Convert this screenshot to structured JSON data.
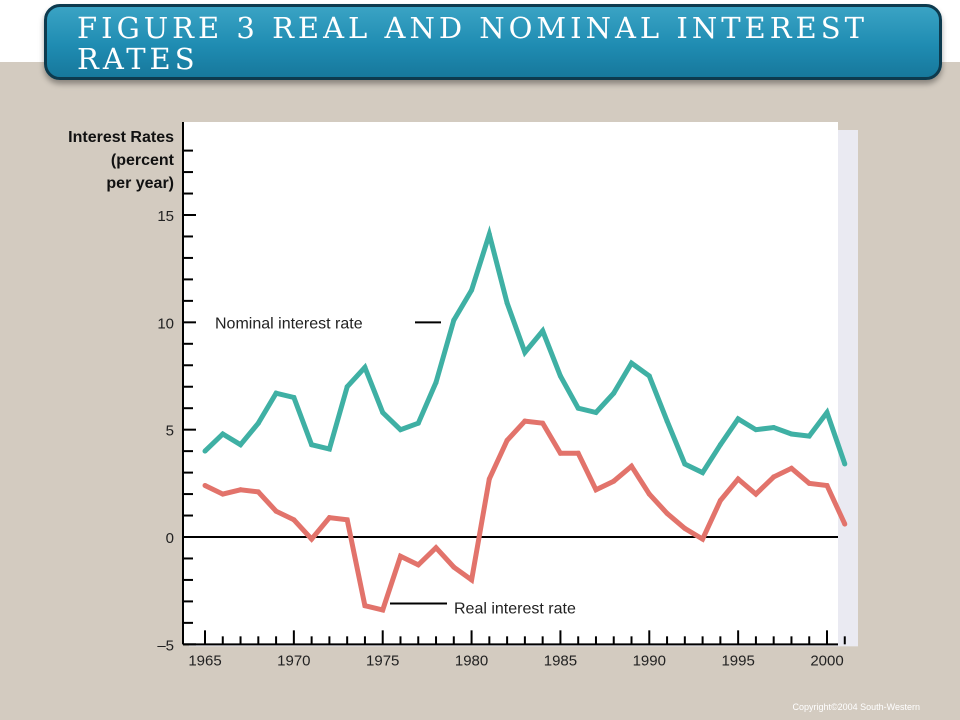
{
  "header": {
    "title": "FIGURE 3 REAL AND NOMINAL INTEREST RATES"
  },
  "footer": {
    "copyright": "Copyright©2004 South-Western"
  },
  "colors": {
    "nominal": "#3fb0a4",
    "real": "#e2736b",
    "title_banner": "#2190b6",
    "background": "#d3cbc0"
  },
  "chart_data": {
    "type": "line",
    "ylabel_lines": [
      "Interest Rates",
      "(percent",
      "per year)"
    ],
    "ylim": [
      -5,
      15
    ],
    "xlim": [
      1964,
      2001
    ],
    "y_ticks": [
      15,
      10,
      5,
      0,
      -5
    ],
    "y_tick_labels": [
      "15",
      "10",
      "5",
      "0",
      "–5"
    ],
    "x_ticks": [
      1965,
      1970,
      1975,
      1980,
      1985,
      1990,
      1995,
      2000
    ],
    "x_tick_labels": [
      "1965",
      "1970",
      "1975",
      "1980",
      "1985",
      "1990",
      "1995",
      "2000"
    ],
    "grid": false,
    "series": [
      {
        "name": "Nominal interest rate",
        "color": "#3fb0a4",
        "points": [
          [
            1965,
            4.0
          ],
          [
            1966,
            4.8
          ],
          [
            1967,
            4.3
          ],
          [
            1968,
            5.3
          ],
          [
            1969,
            6.7
          ],
          [
            1970,
            6.5
          ],
          [
            1971,
            4.3
          ],
          [
            1972,
            4.1
          ],
          [
            1973,
            7.0
          ],
          [
            1974,
            7.9
          ],
          [
            1975,
            5.8
          ],
          [
            1976,
            5.0
          ],
          [
            1977,
            5.3
          ],
          [
            1978,
            7.2
          ],
          [
            1979,
            10.1
          ],
          [
            1980,
            11.5
          ],
          [
            1981,
            14.1
          ],
          [
            1982,
            10.9
          ],
          [
            1983,
            8.6
          ],
          [
            1984,
            9.6
          ],
          [
            1985,
            7.5
          ],
          [
            1986,
            6.0
          ],
          [
            1987,
            5.8
          ],
          [
            1988,
            6.7
          ],
          [
            1989,
            8.1
          ],
          [
            1990,
            7.5
          ],
          [
            1991,
            5.4
          ],
          [
            1992,
            3.4
          ],
          [
            1993,
            3.0
          ],
          [
            1994,
            4.3
          ],
          [
            1995,
            5.5
          ],
          [
            1996,
            5.0
          ],
          [
            1997,
            5.1
          ],
          [
            1998,
            4.8
          ],
          [
            1999,
            4.7
          ],
          [
            2000,
            5.8
          ],
          [
            2001,
            3.4
          ]
        ]
      },
      {
        "name": "Real interest rate",
        "color": "#e2736b",
        "points": [
          [
            1965,
            2.4
          ],
          [
            1966,
            2.0
          ],
          [
            1967,
            2.2
          ],
          [
            1968,
            2.1
          ],
          [
            1969,
            1.2
          ],
          [
            1970,
            0.8
          ],
          [
            1971,
            -0.1
          ],
          [
            1972,
            0.9
          ],
          [
            1973,
            0.8
          ],
          [
            1974,
            -3.2
          ],
          [
            1975,
            -3.4
          ],
          [
            1976,
            -0.9
          ],
          [
            1977,
            -1.3
          ],
          [
            1978,
            -0.5
          ],
          [
            1979,
            -1.4
          ],
          [
            1980,
            -2.0
          ],
          [
            1981,
            2.7
          ],
          [
            1982,
            4.5
          ],
          [
            1983,
            5.4
          ],
          [
            1984,
            5.3
          ],
          [
            1985,
            3.9
          ],
          [
            1986,
            3.9
          ],
          [
            1987,
            2.2
          ],
          [
            1988,
            2.6
          ],
          [
            1989,
            3.3
          ],
          [
            1990,
            2.0
          ],
          [
            1991,
            1.1
          ],
          [
            1992,
            0.4
          ],
          [
            1993,
            -0.1
          ],
          [
            1994,
            1.7
          ],
          [
            1995,
            2.7
          ],
          [
            1996,
            2.0
          ],
          [
            1997,
            2.8
          ],
          [
            1998,
            3.2
          ],
          [
            1999,
            2.5
          ],
          [
            2000,
            2.4
          ],
          [
            2001,
            0.6
          ]
        ]
      }
    ],
    "annotations": [
      {
        "text": "Nominal interest rate",
        "series": "Nominal interest rate"
      },
      {
        "text": "Real interest rate",
        "series": "Real interest rate"
      }
    ]
  }
}
